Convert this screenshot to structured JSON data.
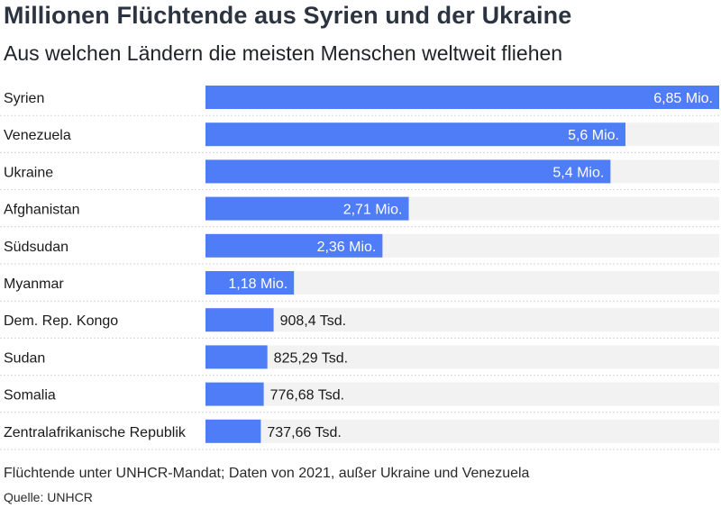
{
  "header": {
    "title": "Millionen Flüchtende aus Syrien und der Ukraine",
    "subtitle": "Aus welchen Ländern die meisten Menschen weltweit fliehen"
  },
  "footer": {
    "note": "Flüchtende unter UNHCR-Mandat; Daten von 2021, außer Ukraine und Venezuela",
    "source": "Quelle: UNHCR"
  },
  "colors": {
    "bar": "#4f7cf7",
    "track": "#f2f2f2",
    "separator": "#d7d7d7"
  },
  "chart_data": {
    "type": "bar",
    "orientation": "horizontal",
    "categories": [
      "Syrien",
      "Venezuela",
      "Ukraine",
      "Afghanistan",
      "Südsudan",
      "Myanmar",
      "Dem. Rep. Kongo",
      "Sudan",
      "Somalia",
      "Zentralafrikanische Republik"
    ],
    "values": [
      6850000,
      5600000,
      5400000,
      2710000,
      2360000,
      1180000,
      908400,
      825290,
      776680,
      737660
    ],
    "value_labels": [
      "6,85 Mio.",
      "5,6 Mio.",
      "5,4 Mio.",
      "2,71 Mio.",
      "2,36 Mio.",
      "1,18 Mio.",
      "908,4 Tsd.",
      "825,29 Tsd.",
      "776,68 Tsd.",
      "737,66 Tsd."
    ],
    "xlim": [
      0,
      6850000
    ],
    "grid": false
  }
}
